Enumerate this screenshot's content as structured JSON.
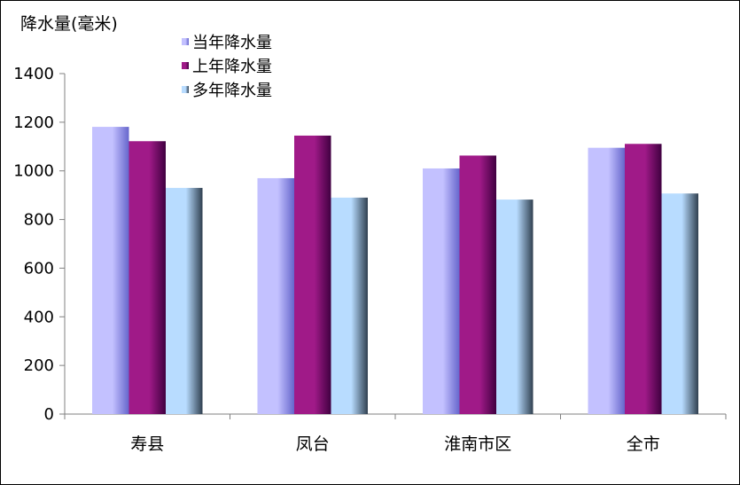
{
  "chart_data": {
    "type": "bar",
    "ylabel": "降水量(毫米)",
    "categories": [
      "寿县",
      "凤台",
      "淮南市区",
      "全市"
    ],
    "series": [
      {
        "name": "当年降水量",
        "values": [
          1181,
          970,
          1010,
          1095
        ],
        "color_light": "#c3c1ff",
        "color_dark": "#6666cc"
      },
      {
        "name": "上年降水量",
        "values": [
          1122,
          1145,
          1063,
          1111
        ],
        "color_light": "#a01a88",
        "color_dark": "#400040"
      },
      {
        "name": "多年降水量",
        "values": [
          930,
          890,
          882,
          907
        ],
        "color_light": "#b8dcff",
        "color_dark": "#304050"
      }
    ],
    "ylim": [
      0,
      1400
    ],
    "yticks": [
      0,
      200,
      400,
      600,
      800,
      1000,
      1200,
      1400
    ],
    "grid": false,
    "legend_position": "top-left"
  }
}
